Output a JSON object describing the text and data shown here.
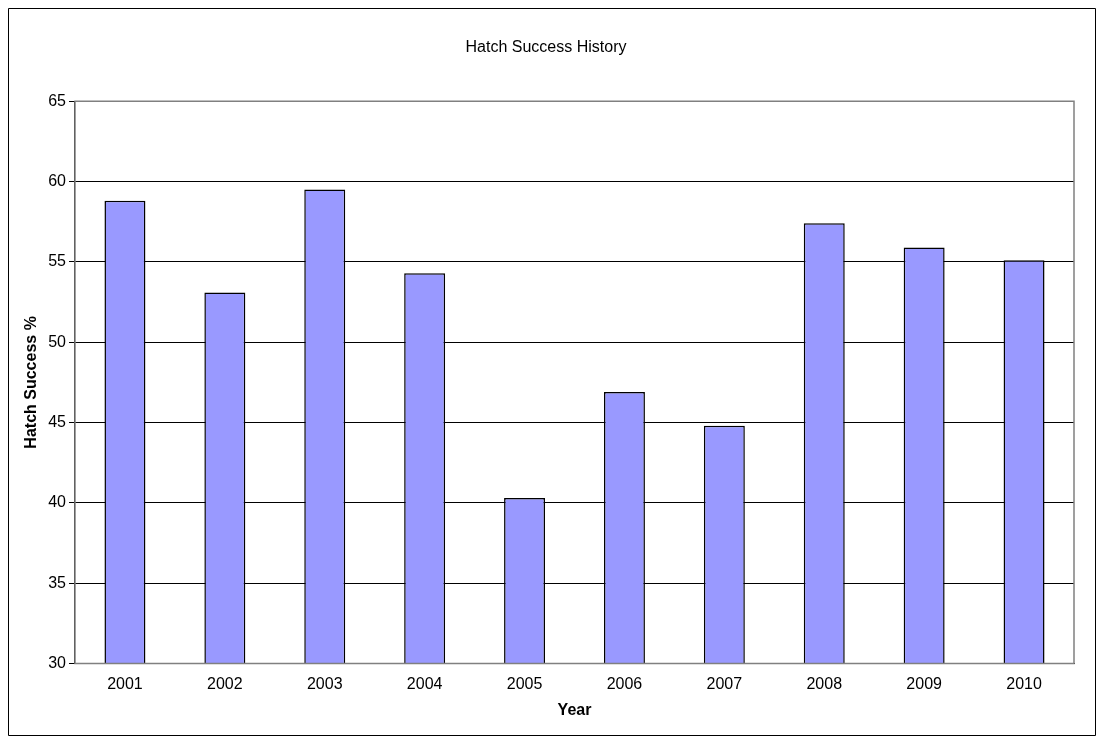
{
  "chart_data": {
    "type": "bar",
    "title": "Hatch Success History",
    "xlabel": "Year",
    "ylabel": "Hatch Success %",
    "categories": [
      "2001",
      "2002",
      "2003",
      "2004",
      "2005",
      "2006",
      "2007",
      "2008",
      "2009",
      "2010"
    ],
    "values": [
      58.8,
      53.1,
      59.5,
      54.3,
      40.3,
      46.9,
      44.8,
      57.4,
      55.9,
      55.1
    ],
    "color": "#9999ff",
    "ylim": [
      30,
      65
    ],
    "yticks": [
      30,
      35,
      40,
      45,
      50,
      55,
      60,
      65
    ],
    "grid": "y",
    "legend": false
  }
}
